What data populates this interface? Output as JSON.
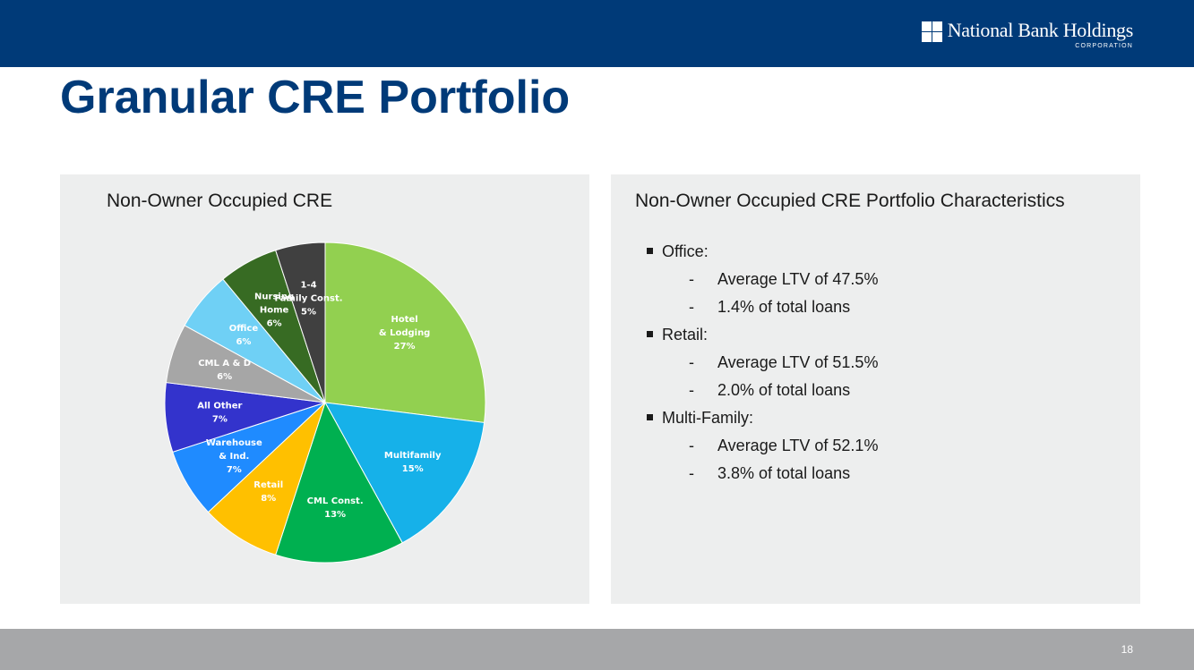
{
  "header": {
    "logo_name": "National Bank Holdings",
    "logo_sub": "CORPORATION",
    "colors": {
      "bar": "#003a78",
      "logo_mark": "logo-squares-icon"
    }
  },
  "title": "Granular CRE Portfolio",
  "chart_panel": {
    "title": "Non-Owner Occupied CRE"
  },
  "chart_data": {
    "type": "pie",
    "title": "Non-Owner Occupied CRE",
    "slices": [
      {
        "label": "Hotel & Lodging",
        "value": 27,
        "value_label": "27%",
        "color": "#92d050",
        "text_color": "#ffffff"
      },
      {
        "label": "Multifamily",
        "value": 15,
        "value_label": "15%",
        "color": "#16b1e9",
        "text_color": "#ffffff"
      },
      {
        "label": "CML Const.",
        "value": 13,
        "value_label": "13%",
        "color": "#00b050",
        "text_color": "#ffffff"
      },
      {
        "label": "Retail",
        "value": 8,
        "value_label": "8%",
        "color": "#ffc000",
        "text_color": "#ffffff"
      },
      {
        "label": "Warehouse & Ind.",
        "value": 7,
        "value_label": "7%",
        "color": "#1f8bff",
        "text_color": "#ffffff"
      },
      {
        "label": "All Other",
        "value": 7,
        "value_label": "7%",
        "color": "#3333cc",
        "text_color": "#ffffff"
      },
      {
        "label": "CML A & D",
        "value": 6,
        "value_label": "6%",
        "color": "#a6a6a6",
        "text_color": "#ffffff"
      },
      {
        "label": "Office",
        "value": 6,
        "value_label": "6%",
        "color": "#6fd0f5",
        "text_color": "#ffffff"
      },
      {
        "label": "Nursing Home",
        "value": 6,
        "value_label": "6%",
        "color": "#376b23",
        "text_color": "#ffffff"
      },
      {
        "label": "1-4 Family Const.",
        "value": 5,
        "value_label": "5%",
        "color": "#404040",
        "text_color": "#ffffff"
      }
    ],
    "legend": "none"
  },
  "characteristics": {
    "title": "Non-Owner Occupied CRE Portfolio Characteristics",
    "items": [
      {
        "label": "Office:",
        "subs": [
          "Average LTV of 47.5%",
          "1.4% of total loans"
        ]
      },
      {
        "label": "Retail:",
        "subs": [
          "Average LTV of 51.5%",
          "2.0% of total loans"
        ]
      },
      {
        "label": "Multi-Family:",
        "subs": [
          "Average LTV of 52.1%",
          "3.8% of total loans"
        ]
      }
    ]
  },
  "footer": {
    "page_number": "18",
    "bar_color": "#a6a7a9"
  }
}
